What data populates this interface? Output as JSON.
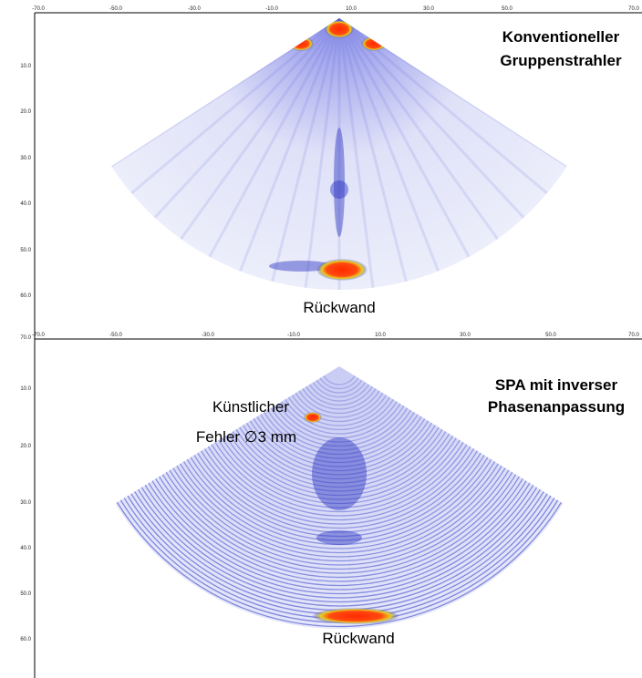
{
  "panels": [
    {
      "title_lines": [
        "Konventioneller",
        "Gruppenstrahler"
      ],
      "annotations": [
        "Rückwand"
      ],
      "x_ticks": [
        "-70.0",
        "-50.0",
        "-30.0",
        "-10.0",
        "10.0",
        "30.0",
        "50.0",
        "70.0"
      ],
      "y_ticks": [
        "10.0",
        "20.0",
        "30.0",
        "40.0",
        "50.0",
        "60.0",
        "70.0"
      ]
    },
    {
      "title_lines": [
        "SPA mit inverser",
        "Phasenanpassung"
      ],
      "annotations": [
        "Künstlicher",
        "Fehler ∅3 mm",
        "Rückwand"
      ],
      "x_ticks": [
        "-70.0",
        "-50.0",
        "-30.0",
        "-10.0",
        "10.0",
        "30.0",
        "50.0",
        "70.0"
      ],
      "y_ticks": [
        "10.0",
        "20.0",
        "30.0",
        "40.0",
        "50.0",
        "60.0"
      ]
    }
  ]
}
